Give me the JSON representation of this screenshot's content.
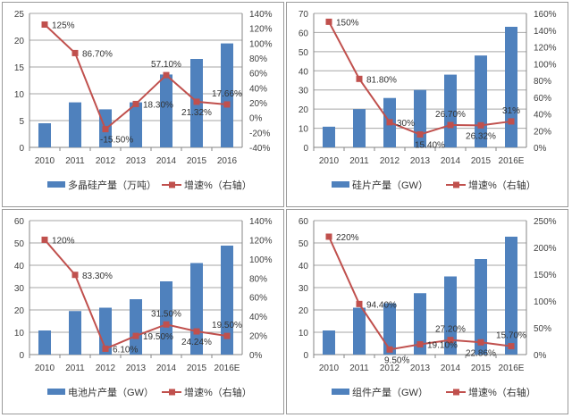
{
  "colors": {
    "bar": "#4f81bd",
    "line": "#c0504d",
    "grid": "#a6a6a6",
    "axis_text": "#404040"
  },
  "chart_data": [
    {
      "type": "bar+line",
      "categories": [
        "2010",
        "2011",
        "2012",
        "2013",
        "2014",
        "2015",
        "2016"
      ],
      "bar_series": {
        "name": "多晶硅产量（万吨）",
        "values": [
          4.5,
          8.4,
          7.1,
          8.4,
          13.6,
          16.5,
          19.4
        ]
      },
      "line_series": {
        "name": "增速%（右轴）",
        "values": [
          125,
          86.7,
          -15.5,
          18.3,
          57.1,
          21.32,
          17.66
        ],
        "labels": [
          "125%",
          "86.70%",
          "-15.50%",
          "18.30%",
          "57.10%",
          "21.32%",
          "17.66%"
        ],
        "label_pos": [
          "right",
          "right",
          "below",
          "right",
          "above",
          "right",
          "right"
        ]
      },
      "left_axis": {
        "range": [
          0,
          25
        ],
        "ticks": [
          "0",
          "5",
          "10",
          "15",
          "20",
          "25"
        ]
      },
      "right_axis": {
        "range": [
          -40,
          140
        ],
        "ticks": [
          "-40%",
          "-20%",
          "0%",
          "20%",
          "40%",
          "60%",
          "80%",
          "100%",
          "120%",
          "140%"
        ]
      },
      "grid": true,
      "legend": "bottom"
    },
    {
      "type": "bar+line",
      "categories": [
        "2010",
        "2011",
        "2012",
        "2013",
        "2014",
        "2015",
        "2016E"
      ],
      "bar_series": {
        "name": "硅片产量（GW）",
        "values": [
          10.8,
          20,
          25.8,
          30,
          38,
          48,
          63
        ]
      },
      "line_series": {
        "name": "增速%（右轴）",
        "values": [
          150,
          81.8,
          30,
          15.4,
          26.7,
          26.32,
          31
        ],
        "labels": [
          "150%",
          "81.80%",
          "30%",
          "15.40%",
          "26.70%",
          "26.32%",
          "31%"
        ],
        "label_pos": [
          "right",
          "right",
          "right",
          "below",
          "above",
          "right",
          "right"
        ]
      },
      "left_axis": {
        "range": [
          0,
          70
        ],
        "ticks": [
          "0",
          "10",
          "20",
          "30",
          "40",
          "50",
          "60",
          "70"
        ]
      },
      "right_axis": {
        "range": [
          0,
          160
        ],
        "ticks": [
          "0%",
          "20%",
          "40%",
          "60%",
          "80%",
          "100%",
          "120%",
          "140%",
          "160%"
        ]
      },
      "grid": true,
      "legend": "bottom"
    },
    {
      "type": "bar+line",
      "categories": [
        "2010",
        "2011",
        "2012",
        "2013",
        "2014",
        "2015",
        "2016E"
      ],
      "bar_series": {
        "name": "电池片产量（GW）",
        "values": [
          10.8,
          19.5,
          21,
          24.8,
          32.8,
          41,
          48.8
        ]
      },
      "line_series": {
        "name": "增速%（右轴）",
        "values": [
          120,
          83.3,
          6.1,
          19.5,
          31.5,
          24.24,
          19.5
        ],
        "labels": [
          "120%",
          "83.30%",
          "6.10%",
          "19.50%",
          "31.50%",
          "24.24%",
          "19.50%"
        ],
        "label_pos": [
          "right",
          "right",
          "right",
          "right",
          "above",
          "right",
          "right"
        ]
      },
      "left_axis": {
        "range": [
          0,
          60
        ],
        "ticks": [
          "0",
          "10",
          "20",
          "30",
          "40",
          "50",
          "60"
        ]
      },
      "right_axis": {
        "range": [
          0,
          140
        ],
        "ticks": [
          "0%",
          "20%",
          "40%",
          "60%",
          "80%",
          "100%",
          "120%",
          "140%"
        ]
      },
      "grid": true,
      "legend": "bottom"
    },
    {
      "type": "bar+line",
      "categories": [
        "2010",
        "2011",
        "2012",
        "2013",
        "2014",
        "2015",
        "2016E"
      ],
      "bar_series": {
        "name": "组件产量（GW）",
        "values": [
          10.8,
          21,
          23,
          27.5,
          35,
          42.8,
          52.8
        ]
      },
      "line_series": {
        "name": "增速%（右轴）",
        "values": [
          220,
          94.4,
          9.5,
          19.1,
          27.2,
          22.86,
          15.7
        ],
        "labels": [
          "220%",
          "94.40%",
          "9.50%",
          "19.10%",
          "27.20%",
          "22.86%",
          "15.70%"
        ],
        "label_pos": [
          "right",
          "right",
          "right",
          "right",
          "above",
          "right",
          "right"
        ]
      },
      "left_axis": {
        "range": [
          0,
          60
        ],
        "ticks": [
          "0",
          "10",
          "20",
          "30",
          "40",
          "50",
          "60"
        ]
      },
      "right_axis": {
        "range": [
          0,
          250
        ],
        "ticks": [
          "0%",
          "50%",
          "100%",
          "150%",
          "200%",
          "250%"
        ]
      },
      "grid": true,
      "legend": "bottom"
    }
  ]
}
